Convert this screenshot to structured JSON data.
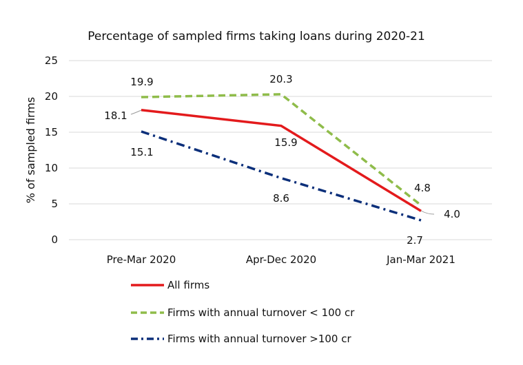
{
  "chart_data": {
    "type": "line",
    "title": "Percentage of sampled firms taking loans during 2020-21",
    "xlabel": "",
    "ylabel": "% of sampled firms",
    "categories": [
      "Pre-Mar 2020",
      "Apr-Dec 2020",
      "Jan-Mar 2021"
    ],
    "ylim": [
      0,
      25
    ],
    "yticks": [
      "0",
      "5",
      "10",
      "15",
      "20",
      "25"
    ],
    "grid": true,
    "legend_position": "bottom",
    "series": [
      {
        "name": "All firms",
        "values": [
          18.1,
          15.9,
          4.0
        ],
        "labels": [
          "18.1",
          "15.9",
          "4.0"
        ],
        "color": "#e31a1c",
        "style": "solid"
      },
      {
        "name": "Firms with annual turnover < 100 cr",
        "values": [
          19.9,
          20.3,
          4.8
        ],
        "labels": [
          "19.9",
          "20.3",
          "4.8"
        ],
        "color": "#8fbc4a",
        "style": "dashed"
      },
      {
        "name": "Firms with annual turnover >100 cr",
        "values": [
          15.1,
          8.6,
          2.7
        ],
        "labels": [
          "15.1",
          "8.6",
          "2.7"
        ],
        "color": "#0b2f7a",
        "style": "dashdot"
      }
    ]
  }
}
